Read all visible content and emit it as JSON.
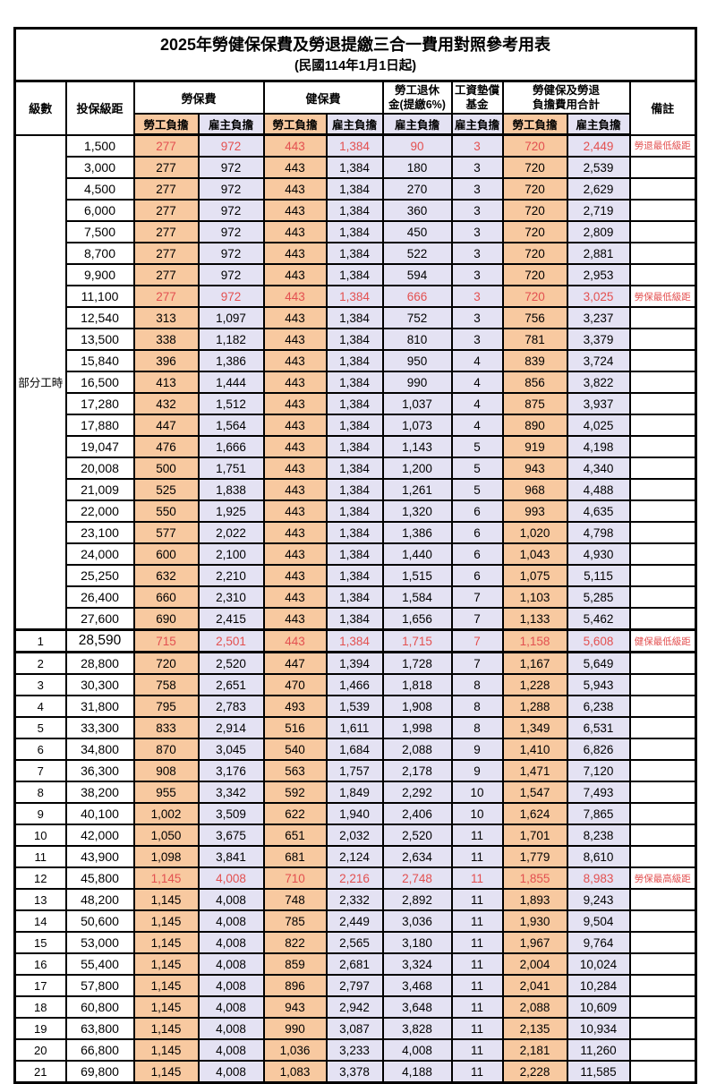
{
  "title": "2025年勞健保保費及勞退提繳三合一費用對照參考用表",
  "subtitle": "(民國114年1月1日起)",
  "columns": {
    "level": "級數",
    "bracket": "投保級距",
    "labor": "勞保費",
    "health": "健保費",
    "pension_line1": "勞工退休",
    "pension_line2": "金(提繳6%)",
    "fund_line1": "工資墊償",
    "fund_line2": "基金",
    "total_line1": "勞健保及勞退",
    "total_line2": "負擔費用合計",
    "remark": "備註",
    "employee_label": "勞工負擔",
    "employer_label": "雇主負擔"
  },
  "part_time_label": "部分工時",
  "part_time_span": 23,
  "colors": {
    "employee_bg": "#F8C9A0",
    "employer_bg": "#E4E2F3",
    "highlight_text": "#E35050",
    "border": "#000000"
  },
  "rows": [
    {
      "level": "",
      "bracket": "1,500",
      "values": [
        "277",
        "972",
        "443",
        "1,384",
        "90",
        "3",
        "720",
        "2,449"
      ],
      "remark": "勞退最低級距",
      "highlight": true,
      "separator": false
    },
    {
      "level": "",
      "bracket": "3,000",
      "values": [
        "277",
        "972",
        "443",
        "1,384",
        "180",
        "3",
        "720",
        "2,539"
      ],
      "remark": "",
      "highlight": false,
      "separator": false
    },
    {
      "level": "",
      "bracket": "4,500",
      "values": [
        "277",
        "972",
        "443",
        "1,384",
        "270",
        "3",
        "720",
        "2,629"
      ],
      "remark": "",
      "highlight": false,
      "separator": false
    },
    {
      "level": "",
      "bracket": "6,000",
      "values": [
        "277",
        "972",
        "443",
        "1,384",
        "360",
        "3",
        "720",
        "2,719"
      ],
      "remark": "",
      "highlight": false,
      "separator": false
    },
    {
      "level": "",
      "bracket": "7,500",
      "values": [
        "277",
        "972",
        "443",
        "1,384",
        "450",
        "3",
        "720",
        "2,809"
      ],
      "remark": "",
      "highlight": false,
      "separator": false
    },
    {
      "level": "",
      "bracket": "8,700",
      "values": [
        "277",
        "972",
        "443",
        "1,384",
        "522",
        "3",
        "720",
        "2,881"
      ],
      "remark": "",
      "highlight": false,
      "separator": false
    },
    {
      "level": "",
      "bracket": "9,900",
      "values": [
        "277",
        "972",
        "443",
        "1,384",
        "594",
        "3",
        "720",
        "2,953"
      ],
      "remark": "",
      "highlight": false,
      "separator": false
    },
    {
      "level": "",
      "bracket": "11,100",
      "values": [
        "277",
        "972",
        "443",
        "1,384",
        "666",
        "3",
        "720",
        "3,025"
      ],
      "remark": "勞保最低級距",
      "highlight": true,
      "separator": false
    },
    {
      "level": "",
      "bracket": "12,540",
      "values": [
        "313",
        "1,097",
        "443",
        "1,384",
        "752",
        "3",
        "756",
        "3,237"
      ],
      "remark": "",
      "highlight": false,
      "separator": false
    },
    {
      "level": "",
      "bracket": "13,500",
      "values": [
        "338",
        "1,182",
        "443",
        "1,384",
        "810",
        "3",
        "781",
        "3,379"
      ],
      "remark": "",
      "highlight": false,
      "separator": false
    },
    {
      "level": "",
      "bracket": "15,840",
      "values": [
        "396",
        "1,386",
        "443",
        "1,384",
        "950",
        "4",
        "839",
        "3,724"
      ],
      "remark": "",
      "highlight": false,
      "separator": false
    },
    {
      "level": "",
      "bracket": "16,500",
      "values": [
        "413",
        "1,444",
        "443",
        "1,384",
        "990",
        "4",
        "856",
        "3,822"
      ],
      "remark": "",
      "highlight": false,
      "separator": false
    },
    {
      "level": "",
      "bracket": "17,280",
      "values": [
        "432",
        "1,512",
        "443",
        "1,384",
        "1,037",
        "4",
        "875",
        "3,937"
      ],
      "remark": "",
      "highlight": false,
      "separator": false
    },
    {
      "level": "",
      "bracket": "17,880",
      "values": [
        "447",
        "1,564",
        "443",
        "1,384",
        "1,073",
        "4",
        "890",
        "4,025"
      ],
      "remark": "",
      "highlight": false,
      "separator": false
    },
    {
      "level": "",
      "bracket": "19,047",
      "values": [
        "476",
        "1,666",
        "443",
        "1,384",
        "1,143",
        "5",
        "919",
        "4,198"
      ],
      "remark": "",
      "highlight": false,
      "separator": false
    },
    {
      "level": "",
      "bracket": "20,008",
      "values": [
        "500",
        "1,751",
        "443",
        "1,384",
        "1,200",
        "5",
        "943",
        "4,340"
      ],
      "remark": "",
      "highlight": false,
      "separator": false
    },
    {
      "level": "",
      "bracket": "21,009",
      "values": [
        "525",
        "1,838",
        "443",
        "1,384",
        "1,261",
        "5",
        "968",
        "4,488"
      ],
      "remark": "",
      "highlight": false,
      "separator": false
    },
    {
      "level": "",
      "bracket": "22,000",
      "values": [
        "550",
        "1,925",
        "443",
        "1,384",
        "1,320",
        "6",
        "993",
        "4,635"
      ],
      "remark": "",
      "highlight": false,
      "separator": false
    },
    {
      "level": "",
      "bracket": "23,100",
      "values": [
        "577",
        "2,022",
        "443",
        "1,384",
        "1,386",
        "6",
        "1,020",
        "4,798"
      ],
      "remark": "",
      "highlight": false,
      "separator": false
    },
    {
      "level": "",
      "bracket": "24,000",
      "values": [
        "600",
        "2,100",
        "443",
        "1,384",
        "1,440",
        "6",
        "1,043",
        "4,930"
      ],
      "remark": "",
      "highlight": false,
      "separator": false
    },
    {
      "level": "",
      "bracket": "25,250",
      "values": [
        "632",
        "2,210",
        "443",
        "1,384",
        "1,515",
        "6",
        "1,075",
        "5,115"
      ],
      "remark": "",
      "highlight": false,
      "separator": false
    },
    {
      "level": "",
      "bracket": "26,400",
      "values": [
        "660",
        "2,310",
        "443",
        "1,384",
        "1,584",
        "7",
        "1,103",
        "5,285"
      ],
      "remark": "",
      "highlight": false,
      "separator": false
    },
    {
      "level": "",
      "bracket": "27,600",
      "values": [
        "690",
        "2,415",
        "443",
        "1,384",
        "1,656",
        "7",
        "1,133",
        "5,462"
      ],
      "remark": "",
      "highlight": false,
      "separator": false
    },
    {
      "level": "1",
      "bracket": "28,590",
      "values": [
        "715",
        "2,501",
        "443",
        "1,384",
        "1,715",
        "7",
        "1,158",
        "5,608"
      ],
      "remark": "健保最低級距",
      "highlight": true,
      "separator": true
    },
    {
      "level": "2",
      "bracket": "28,800",
      "values": [
        "720",
        "2,520",
        "447",
        "1,394",
        "1,728",
        "7",
        "1,167",
        "5,649"
      ],
      "remark": "",
      "highlight": false,
      "separator": false
    },
    {
      "level": "3",
      "bracket": "30,300",
      "values": [
        "758",
        "2,651",
        "470",
        "1,466",
        "1,818",
        "8",
        "1,228",
        "5,943"
      ],
      "remark": "",
      "highlight": false,
      "separator": false
    },
    {
      "level": "4",
      "bracket": "31,800",
      "values": [
        "795",
        "2,783",
        "493",
        "1,539",
        "1,908",
        "8",
        "1,288",
        "6,238"
      ],
      "remark": "",
      "highlight": false,
      "separator": false
    },
    {
      "level": "5",
      "bracket": "33,300",
      "values": [
        "833",
        "2,914",
        "516",
        "1,611",
        "1,998",
        "8",
        "1,349",
        "6,531"
      ],
      "remark": "",
      "highlight": false,
      "separator": false
    },
    {
      "level": "6",
      "bracket": "34,800",
      "values": [
        "870",
        "3,045",
        "540",
        "1,684",
        "2,088",
        "9",
        "1,410",
        "6,826"
      ],
      "remark": "",
      "highlight": false,
      "separator": false
    },
    {
      "level": "7",
      "bracket": "36,300",
      "values": [
        "908",
        "3,176",
        "563",
        "1,757",
        "2,178",
        "9",
        "1,471",
        "7,120"
      ],
      "remark": "",
      "highlight": false,
      "separator": false
    },
    {
      "level": "8",
      "bracket": "38,200",
      "values": [
        "955",
        "3,342",
        "592",
        "1,849",
        "2,292",
        "10",
        "1,547",
        "7,493"
      ],
      "remark": "",
      "highlight": false,
      "separator": false
    },
    {
      "level": "9",
      "bracket": "40,100",
      "values": [
        "1,002",
        "3,509",
        "622",
        "1,940",
        "2,406",
        "10",
        "1,624",
        "7,865"
      ],
      "remark": "",
      "highlight": false,
      "separator": false
    },
    {
      "level": "10",
      "bracket": "42,000",
      "values": [
        "1,050",
        "3,675",
        "651",
        "2,032",
        "2,520",
        "11",
        "1,701",
        "8,238"
      ],
      "remark": "",
      "highlight": false,
      "separator": false
    },
    {
      "level": "11",
      "bracket": "43,900",
      "values": [
        "1,098",
        "3,841",
        "681",
        "2,124",
        "2,634",
        "11",
        "1,779",
        "8,610"
      ],
      "remark": "",
      "highlight": false,
      "separator": false
    },
    {
      "level": "12",
      "bracket": "45,800",
      "values": [
        "1,145",
        "4,008",
        "710",
        "2,216",
        "2,748",
        "11",
        "1,855",
        "8,983"
      ],
      "remark": "勞保最高級距",
      "highlight": true,
      "separator": false
    },
    {
      "level": "13",
      "bracket": "48,200",
      "values": [
        "1,145",
        "4,008",
        "748",
        "2,332",
        "2,892",
        "11",
        "1,893",
        "9,243"
      ],
      "remark": "",
      "highlight": false,
      "separator": false
    },
    {
      "level": "14",
      "bracket": "50,600",
      "values": [
        "1,145",
        "4,008",
        "785",
        "2,449",
        "3,036",
        "11",
        "1,930",
        "9,504"
      ],
      "remark": "",
      "highlight": false,
      "separator": false
    },
    {
      "level": "15",
      "bracket": "53,000",
      "values": [
        "1,145",
        "4,008",
        "822",
        "2,565",
        "3,180",
        "11",
        "1,967",
        "9,764"
      ],
      "remark": "",
      "highlight": false,
      "separator": false
    },
    {
      "level": "16",
      "bracket": "55,400",
      "values": [
        "1,145",
        "4,008",
        "859",
        "2,681",
        "3,324",
        "11",
        "2,004",
        "10,024"
      ],
      "remark": "",
      "highlight": false,
      "separator": false
    },
    {
      "level": "17",
      "bracket": "57,800",
      "values": [
        "1,145",
        "4,008",
        "896",
        "2,797",
        "3,468",
        "11",
        "2,041",
        "10,284"
      ],
      "remark": "",
      "highlight": false,
      "separator": false
    },
    {
      "level": "18",
      "bracket": "60,800",
      "values": [
        "1,145",
        "4,008",
        "943",
        "2,942",
        "3,648",
        "11",
        "2,088",
        "10,609"
      ],
      "remark": "",
      "highlight": false,
      "separator": false
    },
    {
      "level": "19",
      "bracket": "63,800",
      "values": [
        "1,145",
        "4,008",
        "990",
        "3,087",
        "3,828",
        "11",
        "2,135",
        "10,934"
      ],
      "remark": "",
      "highlight": false,
      "separator": false
    },
    {
      "level": "20",
      "bracket": "66,800",
      "values": [
        "1,145",
        "4,008",
        "1,036",
        "3,233",
        "4,008",
        "11",
        "2,181",
        "11,260"
      ],
      "remark": "",
      "highlight": false,
      "separator": false
    },
    {
      "level": "21",
      "bracket": "69,800",
      "values": [
        "1,145",
        "4,008",
        "1,083",
        "3,378",
        "4,188",
        "11",
        "2,228",
        "11,585"
      ],
      "remark": "",
      "highlight": false,
      "separator": false
    }
  ]
}
